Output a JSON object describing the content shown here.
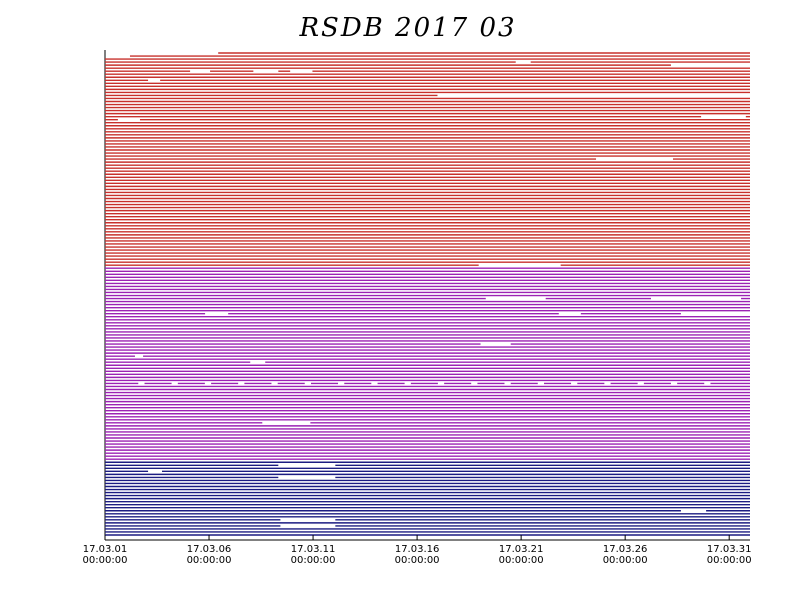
{
  "chart_data": {
    "type": "timeline",
    "title": "RSDB  2017  03",
    "xlim": [
      1,
      32
    ],
    "xticks": [
      {
        "value": 1,
        "label": [
          "17.03.01",
          "00:00:00"
        ]
      },
      {
        "value": 6,
        "label": [
          "17.03.06",
          "00:00:00"
        ]
      },
      {
        "value": 11,
        "label": [
          "17.03.11",
          "00:00:00"
        ]
      },
      {
        "value": 16,
        "label": [
          "17.03.16",
          "00:00:00"
        ]
      },
      {
        "value": 21,
        "label": [
          "17.03.21",
          "00:00:00"
        ]
      },
      {
        "value": 26,
        "label": [
          "17.03.26",
          "00:00:00"
        ]
      },
      {
        "value": 31,
        "label": [
          "17.03.31",
          "00:00:00"
        ]
      }
    ],
    "groups": [
      {
        "color": "#c8302c",
        "rows": [
          [
            [
              6.44,
              32
            ]
          ],
          [
            [
              2.2,
              32
            ]
          ],
          [
            [
              1,
              32
            ]
          ],
          [
            [
              1,
              20.74
            ],
            [
              21.46,
              32
            ]
          ],
          [
            [
              1,
              28.2
            ]
          ],
          [
            [
              1,
              32
            ]
          ],
          [
            [
              1,
              5.09
            ],
            [
              6.05,
              8.13
            ],
            [
              9.33,
              9.9
            ],
            [
              10.97,
              32
            ]
          ],
          [
            [
              1,
              32
            ]
          ],
          [
            [
              1,
              32
            ]
          ],
          [
            [
              1,
              3.07
            ],
            [
              3.65,
              32
            ]
          ],
          [
            [
              1,
              32
            ]
          ],
          [
            [
              1,
              32
            ]
          ],
          [
            [
              1,
              32
            ]
          ],
          [
            [
              1,
              32
            ]
          ],
          [
            [
              1,
              16.98
            ]
          ],
          [
            [
              1,
              32
            ]
          ],
          [
            [
              1,
              32
            ]
          ],
          [
            [
              1,
              32
            ]
          ],
          [
            [
              1,
              32
            ]
          ],
          [
            [
              1,
              32
            ]
          ],
          [
            [
              1,
              32
            ]
          ],
          [
            [
              1,
              29.65
            ],
            [
              31.8,
              32
            ]
          ],
          [
            [
              1,
              1.62
            ],
            [
              2.68,
              32
            ]
          ],
          [
            [
              1,
              32
            ]
          ],
          [
            [
              1,
              32
            ]
          ],
          [
            [
              1,
              32
            ]
          ],
          [
            [
              1,
              32
            ]
          ],
          [
            [
              1,
              32
            ]
          ],
          [
            [
              1,
              32
            ]
          ],
          [
            [
              1,
              32
            ]
          ],
          [
            [
              1,
              32
            ]
          ],
          [
            [
              1,
              32
            ]
          ],
          [
            [
              1,
              32
            ]
          ],
          [
            [
              1,
              32
            ]
          ],
          [
            [
              1,
              32
            ]
          ],
          [
            [
              1,
              24.6
            ],
            [
              28.3,
              32
            ]
          ],
          [
            [
              1,
              32
            ]
          ],
          [
            [
              1,
              32
            ]
          ],
          [
            [
              1,
              32
            ]
          ],
          [
            [
              1,
              32
            ]
          ],
          [
            [
              1,
              32
            ]
          ],
          [
            [
              1,
              32
            ]
          ],
          [
            [
              1,
              32
            ]
          ],
          [
            [
              1,
              32
            ]
          ],
          [
            [
              1,
              32
            ]
          ],
          [
            [
              1,
              32
            ]
          ],
          [
            [
              1,
              32
            ]
          ],
          [
            [
              1,
              32
            ]
          ],
          [
            [
              1,
              32
            ]
          ],
          [
            [
              1,
              32
            ]
          ],
          [
            [
              1,
              32
            ]
          ],
          [
            [
              1,
              32
            ]
          ],
          [
            [
              1,
              32
            ]
          ],
          [
            [
              1,
              32
            ]
          ],
          [
            [
              1,
              32
            ]
          ],
          [
            [
              1,
              32
            ]
          ],
          [
            [
              1,
              32
            ]
          ],
          [
            [
              1,
              32
            ]
          ],
          [
            [
              1,
              32
            ]
          ],
          [
            [
              1,
              32
            ]
          ],
          [
            [
              1,
              32
            ]
          ],
          [
            [
              1,
              32
            ]
          ],
          [
            [
              1,
              32
            ]
          ],
          [
            [
              1,
              32
            ]
          ],
          [
            [
              1,
              32
            ]
          ],
          [
            [
              1,
              32
            ]
          ],
          [
            [
              1,
              32
            ]
          ],
          [
            [
              1,
              32
            ]
          ],
          [
            [
              1,
              32
            ]
          ],
          [
            [
              1,
              32
            ]
          ],
          [
            [
              1,
              18.96
            ],
            [
              22.9,
              32
            ]
          ]
        ]
      },
      {
        "color": "#9c22b4",
        "rows": [
          [
            [
              1,
              32
            ]
          ],
          [
            [
              1,
              32
            ]
          ],
          [
            [
              1,
              32
            ]
          ],
          [
            [
              1,
              32
            ]
          ],
          [
            [
              1,
              32
            ]
          ],
          [
            [
              1,
              32
            ]
          ],
          [
            [
              1,
              32
            ]
          ],
          [
            [
              1,
              32
            ]
          ],
          [
            [
              1,
              32
            ]
          ],
          [
            [
              1,
              32
            ]
          ],
          [
            [
              1,
              19.3
            ],
            [
              22.18,
              27.24
            ],
            [
              31.57,
              32
            ]
          ],
          [
            [
              1,
              32
            ]
          ],
          [
            [
              1,
              32
            ]
          ],
          [
            [
              1,
              32
            ]
          ],
          [
            [
              1,
              32
            ]
          ],
          [
            [
              1,
              5.81
            ],
            [
              6.92,
              22.81
            ],
            [
              23.87,
              28.68
            ]
          ],
          [
            [
              1,
              32
            ]
          ],
          [
            [
              1,
              32
            ]
          ],
          [
            [
              1,
              32
            ]
          ],
          [
            [
              1,
              32
            ]
          ],
          [
            [
              1,
              32
            ]
          ],
          [
            [
              1,
              32
            ]
          ],
          [
            [
              1,
              32
            ]
          ],
          [
            [
              1,
              32
            ]
          ],
          [
            [
              1,
              32
            ]
          ],
          [
            [
              1,
              19.05
            ],
            [
              20.5,
              32
            ]
          ],
          [
            [
              1,
              32
            ]
          ],
          [
            [
              1,
              32
            ]
          ],
          [
            [
              1,
              32
            ]
          ],
          [
            [
              1,
              2.44
            ],
            [
              2.83,
              32
            ]
          ],
          [
            [
              1,
              32
            ]
          ],
          [
            [
              1,
              7.98
            ],
            [
              8.7,
              32
            ]
          ],
          [
            [
              1,
              32
            ]
          ],
          [
            [
              1,
              32
            ]
          ],
          [
            [
              1,
              32
            ]
          ],
          [
            [
              1,
              32
            ]
          ],
          [
            [
              1,
              32
            ]
          ],
          [
            [
              1,
              32
            ]
          ],
          [
            [
              1,
              2.6
            ],
            [
              2.9,
              4.2
            ],
            [
              4.5,
              5.8
            ],
            [
              6.1,
              7.4
            ],
            [
              7.7,
              9.0
            ],
            [
              9.3,
              10.6
            ],
            [
              10.9,
              12.2
            ],
            [
              12.5,
              13.8
            ],
            [
              14.1,
              15.4
            ],
            [
              15.7,
              17.0
            ],
            [
              17.3,
              18.6
            ],
            [
              18.9,
              20.2
            ],
            [
              20.5,
              21.8
            ],
            [
              22.1,
              23.4
            ],
            [
              23.7,
              25.0
            ],
            [
              25.3,
              26.6
            ],
            [
              26.9,
              28.2
            ],
            [
              28.5,
              29.8
            ],
            [
              30.1,
              32
            ]
          ],
          [
            [
              1,
              32
            ]
          ],
          [
            [
              1,
              32
            ]
          ],
          [
            [
              1,
              32
            ]
          ],
          [
            [
              1,
              32
            ]
          ],
          [
            [
              1,
              32
            ]
          ],
          [
            [
              1,
              32
            ]
          ],
          [
            [
              1,
              32
            ]
          ],
          [
            [
              1,
              32
            ]
          ],
          [
            [
              1,
              32
            ]
          ],
          [
            [
              1,
              32
            ]
          ],
          [
            [
              1,
              32
            ]
          ],
          [
            [
              1,
              32
            ]
          ],
          [
            [
              1,
              8.56
            ],
            [
              10.87,
              32
            ]
          ],
          [
            [
              1,
              32
            ]
          ],
          [
            [
              1,
              32
            ]
          ],
          [
            [
              1,
              32
            ]
          ],
          [
            [
              1,
              32
            ]
          ],
          [
            [
              1,
              32
            ]
          ],
          [
            [
              1,
              32
            ]
          ],
          [
            [
              1,
              32
            ]
          ],
          [
            [
              1,
              32
            ]
          ],
          [
            [
              1,
              32
            ]
          ],
          [
            [
              1,
              32
            ]
          ],
          [
            [
              1,
              32
            ]
          ],
          [
            [
              1,
              32
            ]
          ]
        ]
      },
      {
        "color": "#1c1c82",
        "rows": [
          [
            [
              1,
              32
            ]
          ],
          [
            [
              1,
              9.33
            ],
            [
              12.07,
              32
            ]
          ],
          [
            [
              1,
              32
            ]
          ],
          [
            [
              1,
              3.07
            ],
            [
              3.74,
              32
            ]
          ],
          [
            [
              1,
              32
            ]
          ],
          [
            [
              1,
              9.33
            ],
            [
              12.07,
              32
            ]
          ],
          [
            [
              1,
              32
            ]
          ],
          [
            [
              1,
              32
            ]
          ],
          [
            [
              1,
              32
            ]
          ],
          [
            [
              1,
              32
            ]
          ],
          [
            [
              1,
              32
            ]
          ],
          [
            [
              1,
              32
            ]
          ],
          [
            [
              1,
              32
            ]
          ],
          [
            [
              1,
              32
            ]
          ],
          [
            [
              1,
              32
            ]
          ],
          [
            [
              1,
              32
            ]
          ],
          [
            [
              1,
              28.68
            ],
            [
              29.89,
              32
            ]
          ],
          [
            [
              1,
              32
            ]
          ],
          [
            [
              1,
              32
            ]
          ],
          [
            [
              1,
              9.43
            ],
            [
              12.07,
              32
            ]
          ],
          [
            [
              1,
              32
            ]
          ],
          [
            [
              1,
              9.43
            ],
            [
              12.07,
              32
            ]
          ],
          [
            [
              1,
              32
            ]
          ],
          [
            [
              1,
              32
            ]
          ],
          [
            [
              1,
              32
            ]
          ]
        ]
      }
    ]
  }
}
